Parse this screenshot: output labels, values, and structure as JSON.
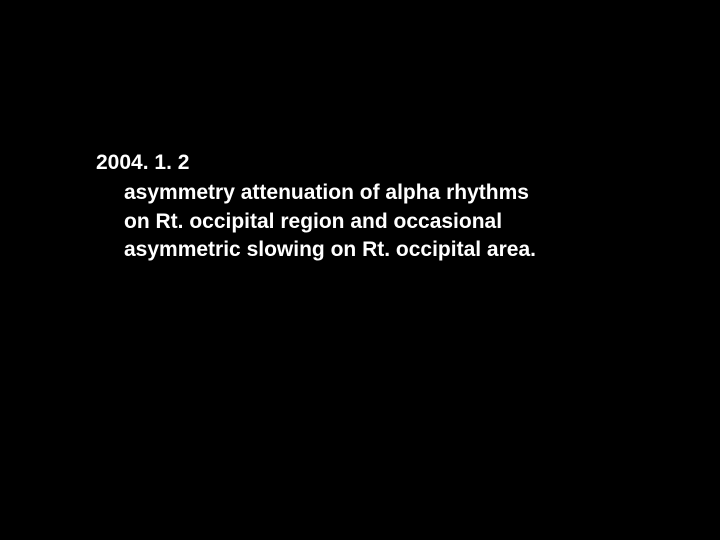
{
  "slide": {
    "background_color": "#000000",
    "text_color": "#ffffff",
    "font_size": 21,
    "font_weight": "bold",
    "date": "2004. 1. 2",
    "body_lines": [
      "asymmetry attenuation of alpha rhythms",
      "on Rt. occipital region and occasional",
      "asymmetric slowing on Rt. occipital area."
    ]
  }
}
